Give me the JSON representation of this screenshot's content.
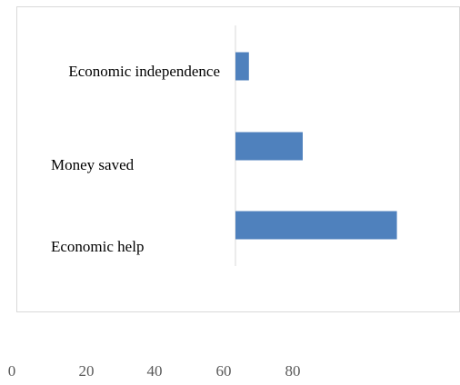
{
  "chart_data": {
    "type": "bar",
    "orientation": "horizontal",
    "categories": [
      "Economic help",
      "Money saved",
      "Economic independence"
    ],
    "values": [
      48,
      20,
      4
    ],
    "x_ticks": [
      "0",
      "20",
      "40",
      "60",
      "80"
    ],
    "xlim": [
      0,
      80
    ],
    "title": "",
    "xlabel": "",
    "ylabel": "",
    "grid": false,
    "legend": "none",
    "bar_color": "#4f81bd",
    "axis_color": "#d9d9d9"
  }
}
